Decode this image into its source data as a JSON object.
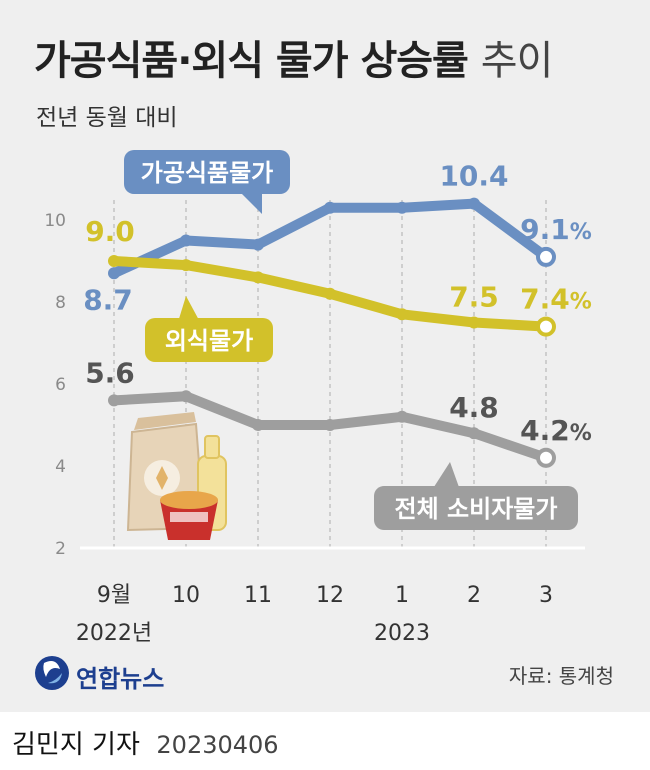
{
  "title": {
    "main": "가공식품·외식 물가 상승률",
    "rest": "추이"
  },
  "subtitle": "전년 동월 대비",
  "source": "자료: 통계청",
  "agency": "연합뉴스",
  "reporter": "김민지 기자",
  "date": "20230406",
  "colors": {
    "processed": "#6a8fc2",
    "dining": "#d2c12a",
    "total": "#9e9e9e",
    "panel": "#efefef"
  },
  "chart_data": {
    "type": "line",
    "categories": [
      "9월",
      "10",
      "11",
      "12",
      "1",
      "2",
      "3"
    ],
    "year_labels": [
      "2022년",
      "2023"
    ],
    "ylim": [
      2,
      11
    ],
    "yticks": [
      2,
      4,
      6,
      8,
      10
    ],
    "grid": "vertical-dashed",
    "unit": "%",
    "series": [
      {
        "name": "가공식품물가",
        "key": "processed",
        "values": [
          8.7,
          9.5,
          9.4,
          10.3,
          10.3,
          10.4,
          9.1
        ],
        "labels": {
          "0": "8.7",
          "5": "10.4",
          "6": "9.1"
        }
      },
      {
        "name": "외식물가",
        "key": "dining",
        "values": [
          9.0,
          8.9,
          8.6,
          8.2,
          7.7,
          7.5,
          7.4
        ],
        "labels": {
          "0": "9.0",
          "5": "7.5",
          "6": "7.4"
        }
      },
      {
        "name": "전체 소비자물가",
        "key": "total",
        "values": [
          5.6,
          5.7,
          5.0,
          5.0,
          5.2,
          4.8,
          4.2
        ],
        "labels": {
          "0": "5.6",
          "5": "4.8",
          "6": "4.2"
        }
      }
    ]
  }
}
